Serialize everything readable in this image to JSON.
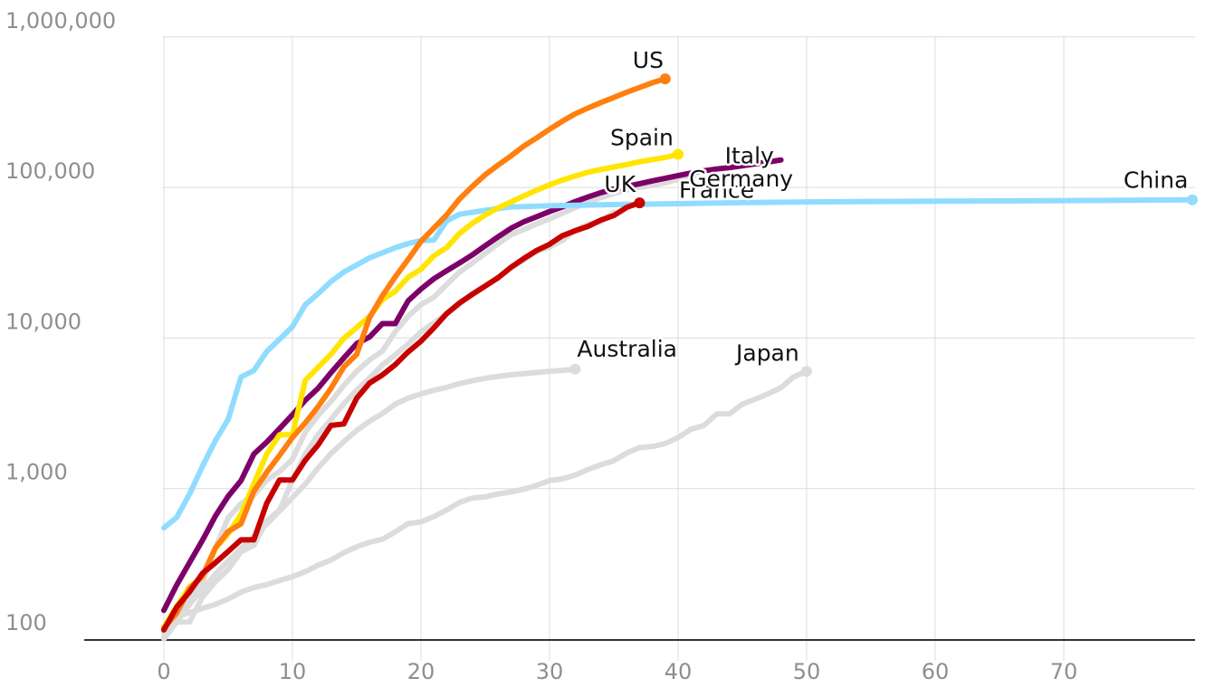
{
  "chart_data": {
    "type": "line",
    "title": "",
    "xlabel": "",
    "ylabel": "",
    "yscale": "log",
    "xlim": [
      -6,
      80
    ],
    "ylim": [
      85,
      1000000
    ],
    "grid": true,
    "x_ticks": [
      0,
      10,
      20,
      30,
      40,
      50,
      60,
      70
    ],
    "x_tick_labels": [
      "0",
      "10",
      "20",
      "30",
      "40",
      "50",
      "60",
      "70"
    ],
    "y_ticks": [
      100,
      1000,
      10000,
      100000,
      1000000
    ],
    "y_tick_labels": [
      "100",
      "1,000",
      "10,000",
      "100,000",
      "1,000,000"
    ],
    "series": [
      {
        "name": "Japan",
        "label": "Japan",
        "color": "#dcdcdc",
        "highlight": false,
        "x": [
          0,
          1,
          2,
          3,
          4,
          5,
          6,
          7,
          8,
          9,
          10,
          11,
          12,
          13,
          14,
          15,
          16,
          17,
          18,
          19,
          20,
          21,
          22,
          23,
          24,
          25,
          26,
          27,
          28,
          29,
          30,
          31,
          32,
          33,
          34,
          35,
          36,
          37,
          38,
          39,
          40,
          41,
          42,
          43,
          44,
          45,
          46,
          47,
          48,
          49,
          50
        ],
        "y": [
          105,
          140,
          150,
          160,
          170,
          185,
          205,
          220,
          230,
          245,
          260,
          280,
          310,
          335,
          375,
          410,
          440,
          460,
          515,
          585,
          600,
          650,
          720,
          810,
          865,
          880,
          920,
          950,
          990,
          1050,
          1130,
          1160,
          1230,
          1340,
          1440,
          1530,
          1720,
          1870,
          1900,
          1990,
          2180,
          2480,
          2620,
          3130,
          3140,
          3640,
          3920,
          4260,
          4670,
          5530,
          6000
        ],
        "end_marker": true
      },
      {
        "name": "Australia",
        "label": "Australia",
        "color": "#dcdcdc",
        "highlight": false,
        "x": [
          0,
          1,
          2,
          3,
          4,
          5,
          6,
          7,
          8,
          9,
          10,
          11,
          12,
          13,
          14,
          15,
          16,
          17,
          18,
          19,
          20,
          21,
          22,
          23,
          24,
          25,
          26,
          27,
          28,
          29,
          30,
          31,
          32
        ],
        "y": [
          110,
          130,
          170,
          215,
          270,
          330,
          400,
          480,
          580,
          710,
          870,
          1070,
          1370,
          1710,
          2050,
          2430,
          2800,
          3150,
          3640,
          3980,
          4250,
          4500,
          4700,
          4980,
          5200,
          5400,
          5550,
          5700,
          5800,
          5900,
          6000,
          6100,
          6200
        ],
        "end_marker": true
      },
      {
        "name": "France",
        "label": "France",
        "color": "#dcdcdc",
        "highlight": false,
        "x": [
          0,
          1,
          2,
          3,
          4,
          5,
          6,
          7,
          8,
          9,
          10,
          11,
          12,
          13,
          14,
          15,
          16,
          17,
          18,
          19,
          20,
          21,
          22,
          23,
          24,
          25,
          26,
          27,
          28,
          29,
          30,
          31,
          32,
          33,
          34,
          35
        ],
        "y": [
          100,
          130,
          130,
          190,
          240,
          290,
          380,
          420,
          610,
          720,
          1130,
          1700,
          2280,
          2880,
          3660,
          4500,
          5420,
          6630,
          7730,
          9130,
          10990,
          12610,
          14460,
          16690,
          19860,
          22300,
          25230,
          29150,
          32960,
          37580,
          40170,
          44550,
          52130,
          56990,
          59100,
          68600
        ],
        "end_marker": false
      },
      {
        "name": "Germany",
        "label": "Germany",
        "color": "#dcdcdc",
        "highlight": false,
        "x": [
          0,
          1,
          2,
          3,
          4,
          5,
          6,
          7,
          8,
          9,
          10,
          11,
          12,
          13,
          14,
          15,
          16,
          17,
          18,
          19,
          20,
          21,
          22,
          23,
          24,
          25,
          26,
          27,
          28,
          29,
          30,
          31,
          32,
          33,
          34,
          35,
          36,
          37,
          38,
          39,
          40,
          41
        ],
        "y": [
          117,
          150,
          188,
          240,
          400,
          639,
          795,
          902,
          1139,
          1296,
          1567,
          2369,
          3062,
          3795,
          4838,
          6012,
          7156,
          8198,
          10999,
          13957,
          16662,
          18610,
          22672,
          27436,
          31554,
          36508,
          42288,
          48582,
          52547,
          57298,
          61913,
          67366,
          73522,
          79696,
          85778,
          91159,
          96092,
          100123,
          103374,
          107663,
          113296,
          118181
        ],
        "end_marker": true
      },
      {
        "name": "Italy",
        "label": "Italy",
        "color": "#7d0068",
        "highlight": true,
        "x": [
          0,
          1,
          2,
          3,
          4,
          5,
          6,
          7,
          8,
          9,
          10,
          11,
          12,
          13,
          14,
          15,
          16,
          17,
          18,
          19,
          20,
          21,
          22,
          23,
          24,
          25,
          26,
          27,
          28,
          29,
          30,
          31,
          32,
          33,
          34,
          35,
          36,
          37,
          38,
          39,
          40,
          41,
          42,
          43,
          44,
          45,
          46,
          47,
          48
        ],
        "y": [
          155,
          229,
          322,
          453,
          655,
          888,
          1128,
          1694,
          2036,
          2502,
          3089,
          3858,
          4636,
          5883,
          7375,
          9172,
          10149,
          12462,
          12462,
          17660,
          21157,
          24747,
          27980,
          31506,
          35713,
          41035,
          47021,
          53578,
          59138,
          63927,
          69176,
          74386,
          80589,
          86498,
          92472,
          97689,
          101739,
          105792,
          110574,
          115242,
          119827,
          124632,
          128948,
          132547,
          135586,
          139422,
          143626,
          147577,
          152271
        ],
        "end_marker": false
      },
      {
        "name": "China",
        "label": "China",
        "color": "#90dcff",
        "highlight": true,
        "x": [
          0,
          1,
          2,
          3,
          4,
          5,
          6,
          7,
          8,
          9,
          10,
          11,
          12,
          13,
          14,
          15,
          16,
          17,
          18,
          19,
          20,
          21,
          22,
          23,
          24,
          25,
          26,
          27,
          28,
          29,
          30,
          35,
          40,
          45,
          50,
          55,
          60,
          65,
          70,
          75,
          80
        ],
        "y": [
          548,
          643,
          920,
          1406,
          2075,
          2877,
          5509,
          6087,
          8141,
          9802,
          11891,
          16630,
          19716,
          23707,
          27440,
          30587,
          34110,
          36814,
          39829,
          42354,
          44386,
          44759,
          59895,
          66358,
          68413,
          70513,
          72434,
          74211,
          74619,
          75077,
          75550,
          77000,
          78000,
          79300,
          80100,
          80700,
          81000,
          81400,
          81800,
          82300,
          82800
        ],
        "end_marker": true
      },
      {
        "name": "Spain",
        "label": "Spain",
        "color": "#ffe500",
        "highlight": true,
        "x": [
          0,
          1,
          2,
          3,
          4,
          5,
          6,
          7,
          8,
          9,
          10,
          11,
          12,
          13,
          14,
          15,
          16,
          17,
          18,
          19,
          20,
          21,
          22,
          23,
          24,
          25,
          26,
          27,
          28,
          29,
          30,
          31,
          32,
          33,
          34,
          35,
          36,
          37,
          38,
          39,
          40
        ],
        "y": [
          120,
          165,
          222,
          259,
          400,
          500,
          673,
          1073,
          1695,
          2277,
          2277,
          5232,
          6391,
          7798,
          9942,
          11748,
          13910,
          17963,
          20410,
          25374,
          28603,
          35136,
          39885,
          49515,
          57786,
          65719,
          73235,
          80110,
          87956,
          95923,
          104118,
          112065,
          119199,
          126168,
          131646,
          136675,
          141942,
          148220,
          153222,
          158273,
          166019
        ],
        "end_marker": true
      },
      {
        "name": "US",
        "label": "US",
        "color": "#ff7f0f",
        "highlight": true,
        "x": [
          0,
          1,
          2,
          3,
          4,
          5,
          6,
          7,
          8,
          9,
          10,
          11,
          12,
          13,
          14,
          15,
          16,
          17,
          18,
          19,
          20,
          21,
          22,
          23,
          24,
          25,
          26,
          27,
          28,
          29,
          30,
          31,
          32,
          33,
          34,
          35,
          36,
          37,
          38,
          39
        ],
        "y": [
          118,
          149,
          217,
          262,
          402,
          518,
          583,
          959,
          1281,
          1663,
          2179,
          2727,
          3499,
          4632,
          6421,
          7786,
          13680,
          19101,
          25493,
          33276,
          43847,
          53740,
          65778,
          83836,
          101657,
          121478,
          140886,
          161807,
          188172,
          213372,
          243453,
          275586,
          308850,
          337072,
          366667,
          396223,
          429052,
          461437,
          496535,
          526396
        ],
        "end_marker": true
      },
      {
        "name": "UK",
        "label": "UK",
        "color": "#c70000",
        "highlight": true,
        "x": [
          0,
          1,
          2,
          3,
          4,
          5,
          6,
          7,
          8,
          9,
          10,
          11,
          12,
          13,
          14,
          15,
          16,
          17,
          18,
          19,
          20,
          21,
          22,
          23,
          24,
          25,
          26,
          27,
          28,
          29,
          30,
          31,
          32,
          33,
          34,
          35,
          36,
          37
        ],
        "y": [
          115,
          163,
          206,
          273,
          321,
          382,
          456,
          456,
          798,
          1140,
          1140,
          1543,
          1950,
          2626,
          2689,
          3983,
          5018,
          5683,
          6650,
          8077,
          9529,
          11658,
          14543,
          17089,
          19522,
          22141,
          25150,
          29474,
          33718,
          38168,
          41903,
          47806,
          51608,
          55242,
          60733,
          65077,
          73758,
          78991
        ],
        "end_marker": true
      }
    ]
  }
}
